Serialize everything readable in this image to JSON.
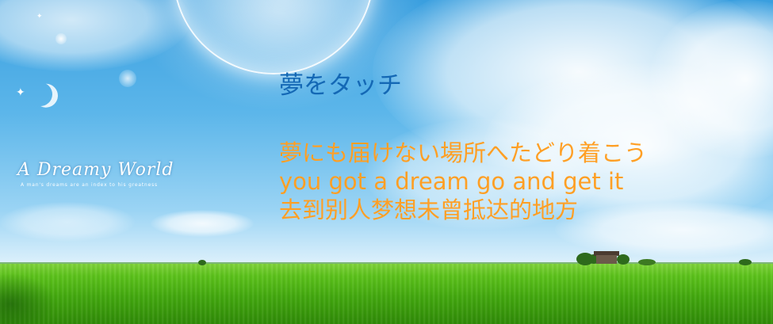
{
  "logo": {
    "title": "A Dreamy World",
    "tagline": "A man's dreams are an index to his greatness"
  },
  "heading": "夢をタッチ",
  "lyrics": [
    "夢にも届けない場所へたどり着こう",
    "you got a dream go and get it",
    "去到别人梦想未曾抵达的地方"
  ],
  "colors": {
    "heading": "#1468b5",
    "lyrics": "#ff9f24",
    "sky_top": "#3a9fdf",
    "field": "#5cc21b"
  }
}
